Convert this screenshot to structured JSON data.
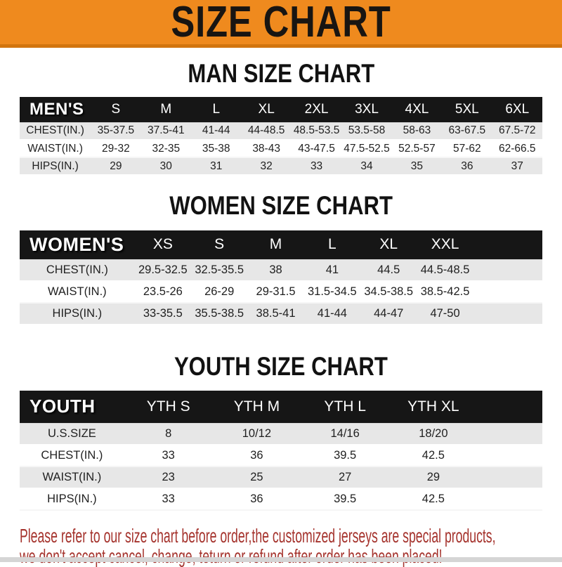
{
  "title": "SIZE CHART",
  "theme": {
    "banner_bg": "#EF8A1E",
    "banner_edge": "#D2750E",
    "header_bar_bg": "#161616",
    "header_bar_text": "#FFFFFF",
    "shade_row_bg": "#E7E7E7",
    "note_text_color": "#A5332D"
  },
  "sections": [
    {
      "heading": "MAN SIZE CHART",
      "table": {
        "corner_label": "MEN'S",
        "columns": [
          "S",
          "M",
          "L",
          "XL",
          "2XL",
          "3XL",
          "4XL",
          "5XL",
          "6XL"
        ],
        "rows": [
          {
            "label": "CHEST(IN.)",
            "values": [
              "35-37.5",
              "37.5-41",
              "41-44",
              "44-48.5",
              "48.5-53.5",
              "53.5-58",
              "58-63",
              "63-67.5",
              "67.5-72"
            ]
          },
          {
            "label": "WAIST(IN.)",
            "values": [
              "29-32",
              "32-35",
              "35-38",
              "38-43",
              "43-47.5",
              "47.5-52.5",
              "52.5-57",
              "57-62",
              "62-66.5"
            ]
          },
          {
            "label": "HIPS(IN.)",
            "values": [
              "29",
              "30",
              "31",
              "32",
              "33",
              "34",
              "35",
              "36",
              "37"
            ]
          }
        ]
      }
    },
    {
      "heading": "WOMEN SIZE CHART",
      "table": {
        "corner_label": "WOMEN'S",
        "columns": [
          "XS",
          "S",
          "M",
          "L",
          "XL",
          "XXL"
        ],
        "rows": [
          {
            "label": "CHEST(IN.)",
            "values": [
              "29.5-32.5",
              "32.5-35.5",
              "38",
              "41",
              "44.5",
              "44.5-48.5"
            ]
          },
          {
            "label": "WAIST(IN.)",
            "values": [
              "23.5-26",
              "26-29",
              "29-31.5",
              "31.5-34.5",
              "34.5-38.5",
              "38.5-42.5"
            ]
          },
          {
            "label": "HIPS(IN.)",
            "values": [
              "33-35.5",
              "35.5-38.5",
              "38.5-41",
              "41-44",
              "44-47",
              "47-50"
            ]
          }
        ]
      }
    },
    {
      "heading": "YOUTH SIZE CHART",
      "table": {
        "corner_label": "YOUTH",
        "columns": [
          "YTH S",
          "YTH M",
          "YTH L",
          "YTH XL"
        ],
        "rows": [
          {
            "label": "U.S.SIZE",
            "values": [
              "8",
              "10/12",
              "14/16",
              "18/20"
            ]
          },
          {
            "label": "CHEST(IN.)",
            "values": [
              "33",
              "36",
              "39.5",
              "42.5"
            ]
          },
          {
            "label": "WAIST(IN.)",
            "values": [
              "23",
              "25",
              "27",
              "29"
            ]
          },
          {
            "label": "HIPS(IN.)",
            "values": [
              "33",
              "36",
              "39.5",
              "42.5"
            ]
          }
        ]
      }
    }
  ],
  "note": {
    "line1": "Please refer to our size chart before order,the customized jerseys are special products,",
    "line2": "we don't accept cancel, change, teturn or refund after order has been placed!"
  }
}
